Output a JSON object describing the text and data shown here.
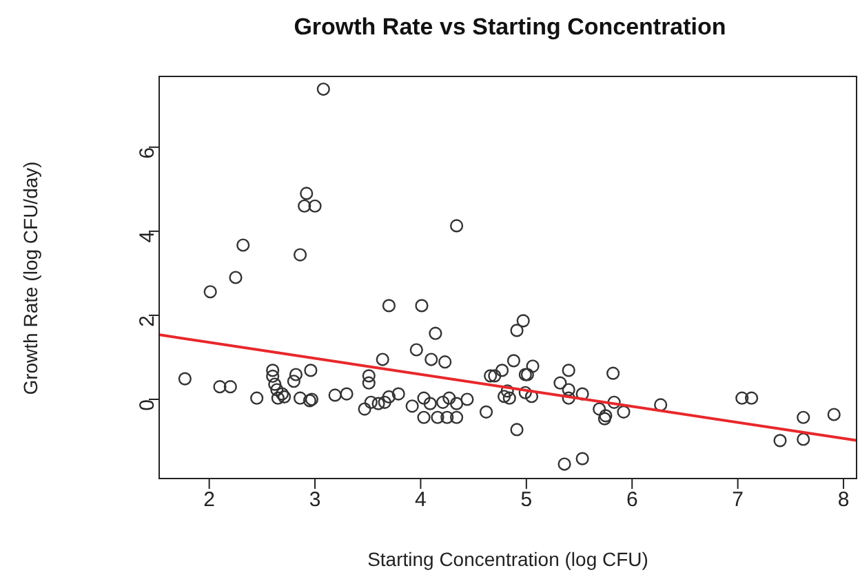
{
  "chart_data": {
    "type": "scatter",
    "title": "Growth Rate vs Starting Concentration",
    "xlabel": "Starting Concentration (log CFU)",
    "ylabel": "Growth Rate (log CFU/day)",
    "xlim": [
      1.52,
      8.13
    ],
    "ylim": [
      -1.9,
      7.7
    ],
    "xticks": [
      2,
      3,
      4,
      5,
      6,
      7,
      8
    ],
    "yticks": [
      0,
      2,
      4,
      6
    ],
    "grid": false,
    "legend": false,
    "marker": "circle",
    "series": [
      {
        "color": "#333333",
        "x": [
          1.77,
          2.01,
          2.1,
          2.2,
          2.25,
          2.32,
          2.45,
          2.86,
          2.92,
          2.9,
          3.0,
          3.08,
          3.7,
          4.01,
          4.14,
          4.34,
          2.6,
          2.6,
          2.62,
          2.64,
          2.69,
          2.65,
          2.71,
          2.82,
          2.8,
          2.96,
          2.86,
          2.95,
          2.97,
          3.19,
          3.3,
          3.51,
          3.51,
          3.47,
          3.53,
          3.64,
          3.6,
          3.66,
          3.7,
          3.79,
          3.96,
          3.92,
          4.03,
          4.03,
          4.1,
          4.23,
          4.09,
          4.16,
          4.21,
          4.27,
          4.25,
          4.34,
          4.34,
          4.44,
          4.62,
          4.66,
          4.77,
          4.7,
          4.82,
          4.84,
          4.88,
          4.91,
          4.97,
          4.99,
          5.01,
          5.06,
          4.91,
          4.99,
          5.05,
          4.79,
          5.32,
          5.4,
          5.4,
          5.4,
          5.53,
          5.36,
          5.53,
          5.69,
          5.75,
          5.74,
          5.82,
          5.83,
          5.92,
          6.27,
          7.04,
          7.13,
          7.4,
          7.62,
          7.62,
          7.91
        ],
        "values": [
          0.49,
          2.56,
          0.3,
          0.3,
          2.9,
          3.67,
          0.03,
          3.44,
          4.9,
          4.6,
          4.6,
          7.38,
          2.23,
          2.23,
          1.57,
          4.13,
          0.69,
          0.55,
          0.36,
          0.23,
          0.13,
          0.03,
          0.06,
          0.59,
          0.43,
          0.69,
          0.03,
          -0.03,
          0.0,
          0.1,
          0.13,
          0.56,
          0.39,
          -0.23,
          -0.07,
          0.95,
          -0.1,
          -0.07,
          0.06,
          0.13,
          1.18,
          -0.16,
          0.03,
          -0.43,
          0.95,
          0.89,
          -0.1,
          -0.43,
          -0.07,
          0.03,
          -0.43,
          -0.43,
          -0.1,
          0.0,
          -0.3,
          0.56,
          0.69,
          0.56,
          0.2,
          0.03,
          0.92,
          1.64,
          1.87,
          0.59,
          0.59,
          0.79,
          -0.72,
          0.16,
          0.07,
          0.07,
          0.39,
          0.69,
          0.23,
          0.03,
          0.13,
          -1.54,
          -1.41,
          -0.23,
          -0.39,
          -0.46,
          0.62,
          -0.07,
          -0.3,
          -0.13,
          0.03,
          0.03,
          -0.98,
          -0.95,
          -0.43,
          -0.36
        ]
      },
      {
        "type": "line",
        "marker": "none",
        "color": "#e8282b",
        "x": [
          1.52,
          8.13
        ],
        "values": [
          1.54,
          -0.98
        ]
      }
    ]
  }
}
